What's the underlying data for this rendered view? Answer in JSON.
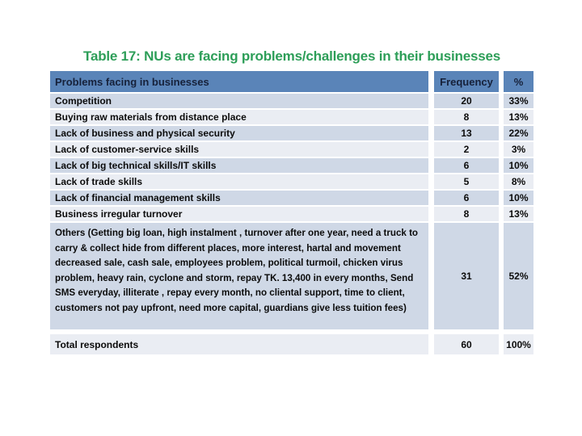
{
  "title": "Table 17: NUs are facing problems/challenges in their businesses",
  "colors": {
    "page_bg": "#ffffff",
    "title": "#2d9e58",
    "header_bg": "#5a84b8",
    "header_text": "#16213a",
    "row_odd_bg": "#cfd8e6",
    "row_even_bg": "#eaedf3",
    "body_text": "#0b0b0b"
  },
  "table": {
    "columns": [
      "Problems facing in businesses",
      "Frequency",
      "%"
    ],
    "rows": [
      {
        "problem": "Competition",
        "frequency": "20",
        "percent": "33%"
      },
      {
        "problem": "Buying raw materials from distance place",
        "frequency": "8",
        "percent": "13%"
      },
      {
        "problem": "Lack of business and physical security",
        "frequency": "13",
        "percent": "22%"
      },
      {
        "problem": "Lack of customer-service skills",
        "frequency": "2",
        "percent": "3%"
      },
      {
        "problem": "Lack of big technical skills/IT skills",
        "frequency": "6",
        "percent": "10%"
      },
      {
        "problem": "Lack of trade skills",
        "frequency": "5",
        "percent": "8%"
      },
      {
        "problem": "Lack of financial management skills",
        "frequency": "6",
        "percent": "10%"
      },
      {
        "problem": "Business irregular turnover",
        "frequency": "8",
        "percent": "13%"
      },
      {
        "problem": "Others (Getting big loan, high instalment , turnover after one year, need a truck to  carry & collect hide from different places, more interest, hartal and movement decreased sale, cash sale, employees problem, political turmoil, chicken virus problem,  heavy rain, cyclone and storm, repay TK. 13,400 in every months, Send SMS everyday, illiterate , repay every month, no cliental support, time to client, customers not pay upfront, need more capital, guardians give less tuition fees)",
        "frequency": "31",
        "percent": "52%",
        "tall": true
      },
      {
        "problem": "Total respondents",
        "frequency": "60",
        "percent": "100%",
        "total": true
      }
    ]
  }
}
